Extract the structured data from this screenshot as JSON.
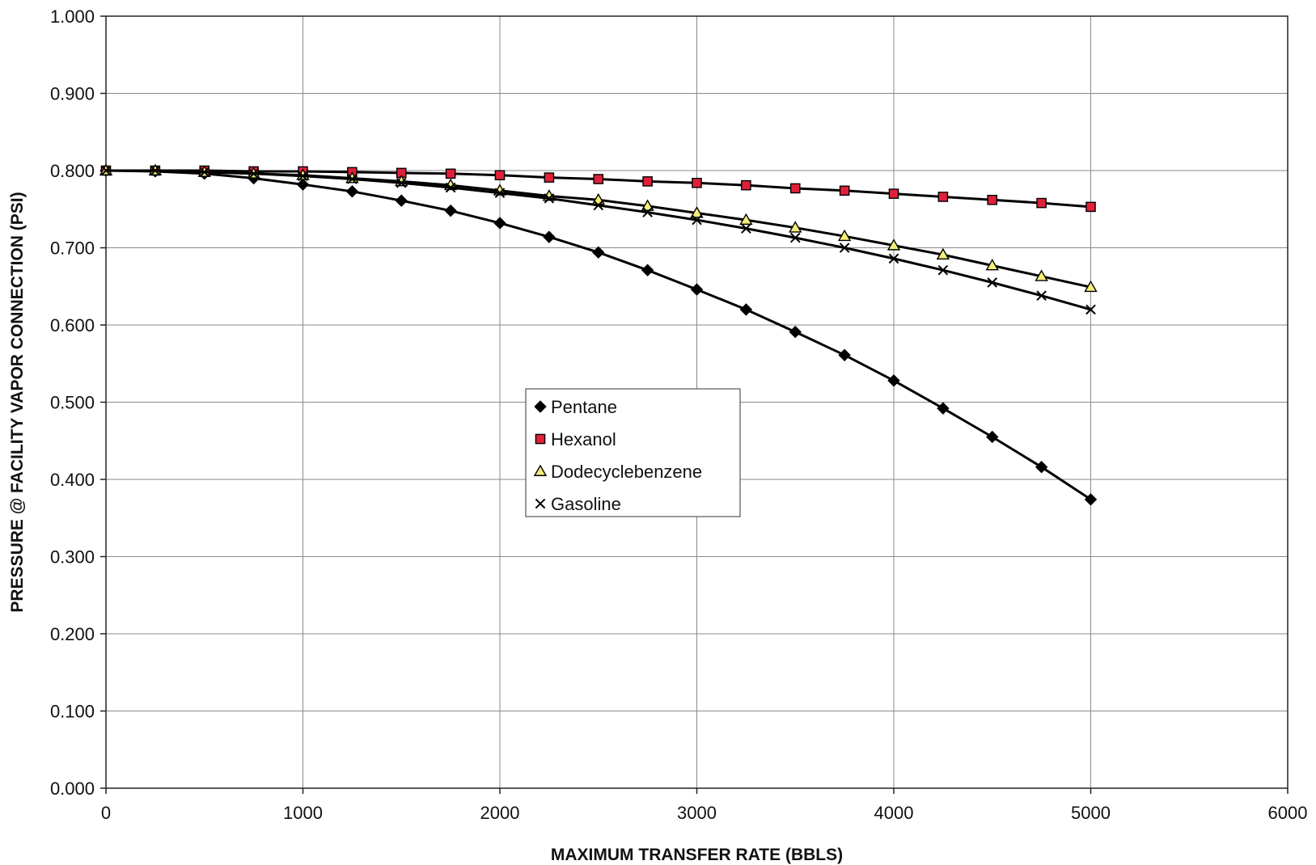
{
  "chart_data": {
    "type": "line",
    "title": "",
    "xlabel": "MAXIMUM TRANSFER RATE (BBLS)",
    "ylabel": "PRESSURE @ FACILITY VAPOR CONNECTION (PSI)",
    "xlim": [
      0,
      6000
    ],
    "ylim": [
      0,
      1.0
    ],
    "x_ticks": [
      "0",
      "1000",
      "2000",
      "3000",
      "4000",
      "5000",
      "6000"
    ],
    "y_ticks": [
      "0.000",
      "0.100",
      "0.200",
      "0.300",
      "0.400",
      "0.500",
      "0.600",
      "0.700",
      "0.800",
      "0.900",
      "1.000"
    ],
    "grid": true,
    "legend_position": "center",
    "x": [
      0,
      250,
      500,
      750,
      1000,
      1250,
      1500,
      1750,
      2000,
      2250,
      2500,
      2750,
      3000,
      3250,
      3500,
      3750,
      4000,
      4250,
      4500,
      4750,
      5000
    ],
    "series": [
      {
        "name": "Pentane",
        "marker": "diamond",
        "color": "#000000",
        "values": [
          0.8,
          0.799,
          0.796,
          0.79,
          0.782,
          0.773,
          0.761,
          0.748,
          0.732,
          0.714,
          0.694,
          0.671,
          0.646,
          0.62,
          0.591,
          0.561,
          0.528,
          0.492,
          0.455,
          0.416,
          0.374
        ]
      },
      {
        "name": "Hexanol",
        "marker": "square",
        "color": "#e0203a",
        "values": [
          0.8,
          0.8,
          0.8,
          0.799,
          0.799,
          0.798,
          0.797,
          0.796,
          0.794,
          0.791,
          0.789,
          0.786,
          0.784,
          0.781,
          0.777,
          0.774,
          0.77,
          0.766,
          0.762,
          0.758,
          0.753
        ]
      },
      {
        "name": "Dodecyclebenzene",
        "marker": "triangle",
        "color": "#f2ee7a",
        "values": [
          0.8,
          0.8,
          0.798,
          0.796,
          0.794,
          0.79,
          0.786,
          0.781,
          0.774,
          0.767,
          0.762,
          0.754,
          0.745,
          0.736,
          0.726,
          0.715,
          0.703,
          0.691,
          0.677,
          0.663,
          0.649
        ]
      },
      {
        "name": "Gasoline",
        "marker": "x",
        "color": "#000000",
        "values": [
          0.8,
          0.8,
          0.798,
          0.796,
          0.793,
          0.789,
          0.784,
          0.778,
          0.771,
          0.764,
          0.755,
          0.746,
          0.736,
          0.725,
          0.713,
          0.7,
          0.686,
          0.671,
          0.655,
          0.638,
          0.62
        ]
      }
    ]
  }
}
